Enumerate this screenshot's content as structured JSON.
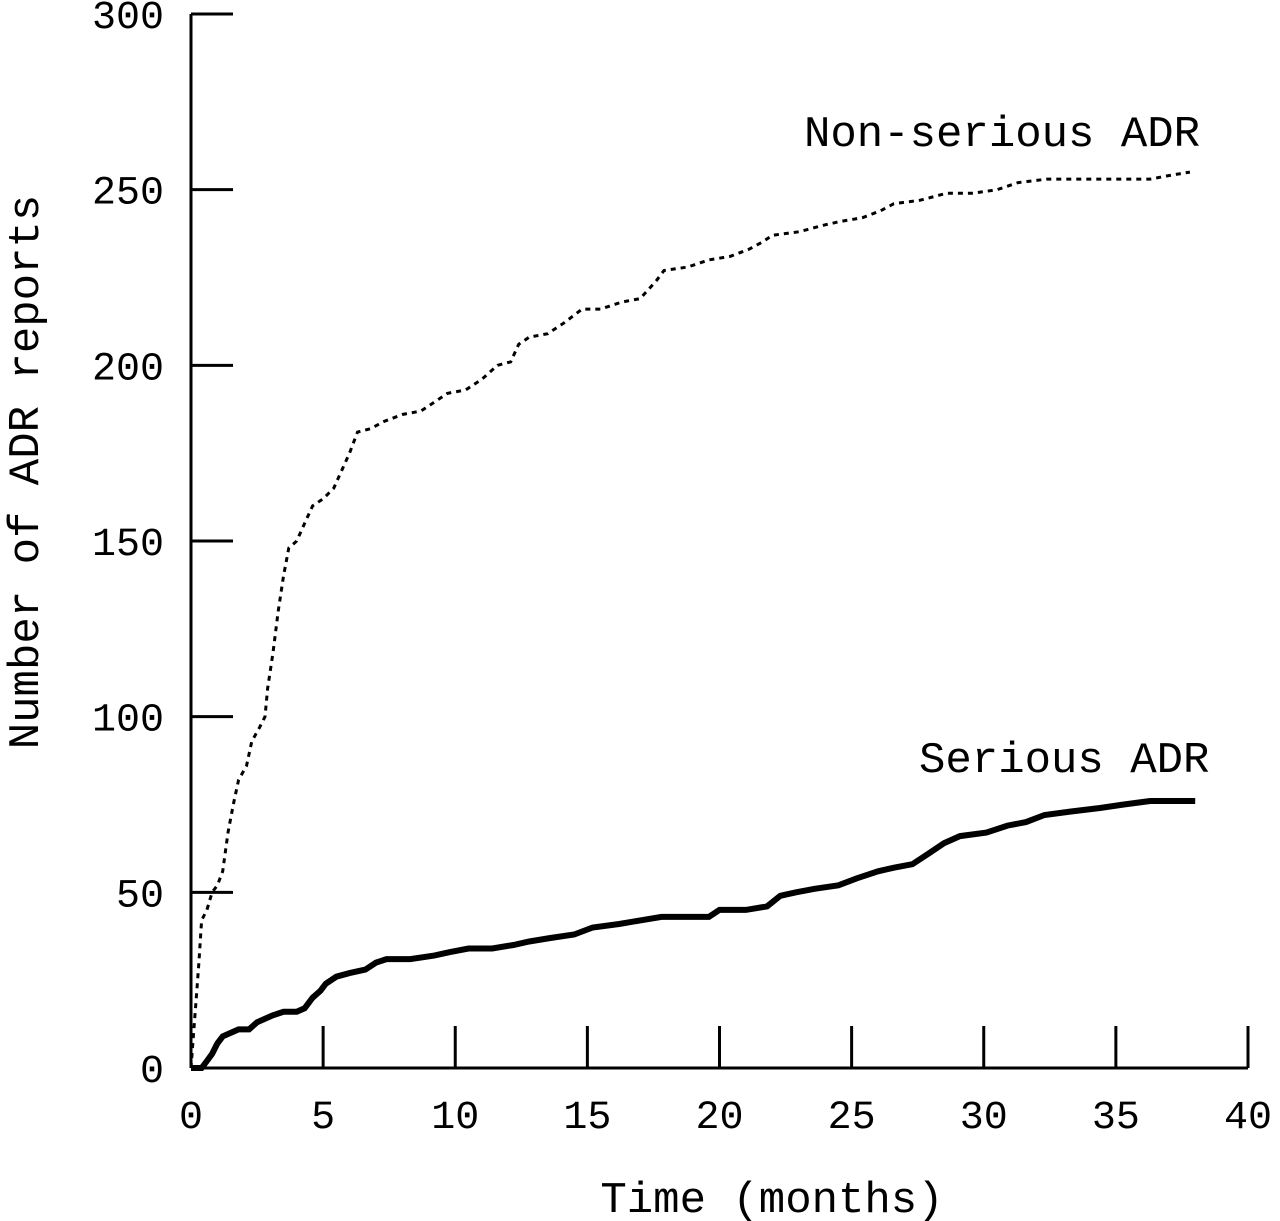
{
  "chart_data": {
    "type": "line",
    "title": "",
    "xlabel": "Time (months)",
    "ylabel": "Number of ADR reports",
    "xlim": [
      0,
      40
    ],
    "ylim": [
      0,
      300
    ],
    "xticks": [
      0,
      5,
      10,
      15,
      20,
      25,
      30,
      35,
      40
    ],
    "yticks": [
      0,
      50,
      100,
      150,
      200,
      250,
      300
    ],
    "xtick_labels": [
      "0",
      "5",
      "10",
      "15",
      "20",
      "25",
      "30",
      "35",
      "40"
    ],
    "ytick_labels": [
      "0",
      "50",
      "100",
      "150",
      "200",
      "250",
      "300"
    ],
    "grid": false,
    "legend": "none",
    "series": [
      {
        "name": "Non-serious ADR",
        "label_text": "Non-serious ADR",
        "style": "dotted",
        "color": "#000000",
        "points": [
          [
            0,
            0
          ],
          [
            0.1,
            10
          ],
          [
            0.2,
            20
          ],
          [
            0.3,
            30
          ],
          [
            0.4,
            42
          ],
          [
            0.6,
            45
          ],
          [
            0.8,
            50
          ],
          [
            1.0,
            52
          ],
          [
            1.2,
            56
          ],
          [
            1.4,
            67
          ],
          [
            1.6,
            75
          ],
          [
            1.8,
            82
          ],
          [
            2.1,
            86
          ],
          [
            2.3,
            93
          ],
          [
            2.6,
            97
          ],
          [
            2.8,
            100
          ],
          [
            2.9,
            108
          ],
          [
            3.1,
            118
          ],
          [
            3.3,
            130
          ],
          [
            3.5,
            140
          ],
          [
            3.7,
            148
          ],
          [
            4.0,
            150
          ],
          [
            4.3,
            155
          ],
          [
            4.6,
            160
          ],
          [
            5.0,
            162
          ],
          [
            5.4,
            165
          ],
          [
            5.7,
            170
          ],
          [
            6.0,
            175
          ],
          [
            6.3,
            181
          ],
          [
            6.8,
            182
          ],
          [
            7.3,
            184
          ],
          [
            8.0,
            186
          ],
          [
            8.7,
            187
          ],
          [
            9.3,
            190
          ],
          [
            9.7,
            192
          ],
          [
            10.4,
            193
          ],
          [
            11.0,
            196
          ],
          [
            11.6,
            200
          ],
          [
            12.1,
            201
          ],
          [
            12.4,
            206
          ],
          [
            12.8,
            208
          ],
          [
            13.5,
            209
          ],
          [
            14.1,
            212
          ],
          [
            14.8,
            216
          ],
          [
            15.5,
            216
          ],
          [
            16.3,
            218
          ],
          [
            17.0,
            219
          ],
          [
            17.6,
            224
          ],
          [
            17.9,
            227
          ],
          [
            18.8,
            228
          ],
          [
            19.6,
            230
          ],
          [
            20.4,
            231
          ],
          [
            21.1,
            233
          ],
          [
            21.6,
            235
          ],
          [
            22.0,
            237
          ],
          [
            23.0,
            238
          ],
          [
            24.0,
            240
          ],
          [
            24.6,
            241
          ],
          [
            25.4,
            242
          ],
          [
            26.1,
            244
          ],
          [
            26.6,
            246
          ],
          [
            27.6,
            247
          ],
          [
            28.6,
            249
          ],
          [
            29.6,
            249
          ],
          [
            30.5,
            250
          ],
          [
            31.3,
            252
          ],
          [
            32.4,
            253
          ],
          [
            33.5,
            253
          ],
          [
            35.0,
            253
          ],
          [
            36.3,
            253
          ],
          [
            37.0,
            254
          ],
          [
            37.8,
            255
          ]
        ]
      },
      {
        "name": "Serious ADR",
        "label_text": "Serious ADR",
        "style": "solid",
        "color": "#000000",
        "points": [
          [
            0,
            0
          ],
          [
            0.4,
            0
          ],
          [
            0.6,
            2
          ],
          [
            0.8,
            4
          ],
          [
            1.0,
            7
          ],
          [
            1.2,
            9
          ],
          [
            1.5,
            10
          ],
          [
            1.8,
            11
          ],
          [
            2.2,
            11
          ],
          [
            2.5,
            13
          ],
          [
            2.8,
            14
          ],
          [
            3.1,
            15
          ],
          [
            3.5,
            16
          ],
          [
            4.0,
            16
          ],
          [
            4.3,
            17
          ],
          [
            4.6,
            20
          ],
          [
            4.9,
            22
          ],
          [
            5.1,
            24
          ],
          [
            5.5,
            26
          ],
          [
            6.0,
            27
          ],
          [
            6.6,
            28
          ],
          [
            7.0,
            30
          ],
          [
            7.4,
            31
          ],
          [
            8.3,
            31
          ],
          [
            9.2,
            32
          ],
          [
            9.8,
            33
          ],
          [
            10.5,
            34
          ],
          [
            11.4,
            34
          ],
          [
            12.2,
            35
          ],
          [
            12.8,
            36
          ],
          [
            13.6,
            37
          ],
          [
            14.5,
            38
          ],
          [
            15.2,
            40
          ],
          [
            16.2,
            41
          ],
          [
            17.0,
            42
          ],
          [
            17.8,
            43
          ],
          [
            18.6,
            43
          ],
          [
            19.6,
            43
          ],
          [
            20.0,
            45
          ],
          [
            21.0,
            45
          ],
          [
            21.8,
            46
          ],
          [
            22.3,
            49
          ],
          [
            22.9,
            50
          ],
          [
            23.6,
            51
          ],
          [
            24.5,
            52
          ],
          [
            25.2,
            54
          ],
          [
            26.0,
            56
          ],
          [
            26.6,
            57
          ],
          [
            27.3,
            58
          ],
          [
            27.9,
            61
          ],
          [
            28.5,
            64
          ],
          [
            29.1,
            66
          ],
          [
            30.1,
            67
          ],
          [
            30.9,
            69
          ],
          [
            31.6,
            70
          ],
          [
            32.3,
            72
          ],
          [
            33.3,
            73
          ],
          [
            34.4,
            74
          ],
          [
            35.3,
            75
          ],
          [
            36.3,
            76
          ],
          [
            37.4,
            76
          ],
          [
            38.0,
            76
          ]
        ]
      }
    ]
  }
}
